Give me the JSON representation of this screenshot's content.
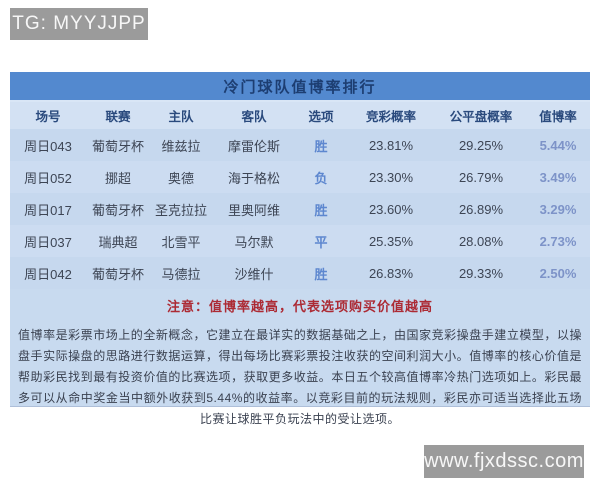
{
  "badges": {
    "top_left": "TG: MYYJJPP",
    "bottom_right": "www.fjxdssc.com"
  },
  "table": {
    "title": "冷门球队值博率排行",
    "headers": [
      "场号",
      "联赛",
      "主队",
      "客队",
      "选项",
      "竞彩概率",
      "公平盘概率",
      "值博率"
    ],
    "rows": [
      {
        "match": "周日043",
        "league": "葡萄牙杯",
        "home": "维兹拉",
        "away": "摩雷伦斯",
        "pick": "胜",
        "lottery_prob": "23.81%",
        "fair_prob": "29.25%",
        "value_rate": "5.44%"
      },
      {
        "match": "周日052",
        "league": "挪超",
        "home": "奥德",
        "away": "海于格松",
        "pick": "负",
        "lottery_prob": "23.30%",
        "fair_prob": "26.79%",
        "value_rate": "3.49%"
      },
      {
        "match": "周日017",
        "league": "葡萄牙杯",
        "home": "圣克拉拉",
        "away": "里奥阿维",
        "pick": "胜",
        "lottery_prob": "23.60%",
        "fair_prob": "26.89%",
        "value_rate": "3.29%"
      },
      {
        "match": "周日037",
        "league": "瑞典超",
        "home": "北雪平",
        "away": "马尔默",
        "pick": "平",
        "lottery_prob": "25.35%",
        "fair_prob": "28.08%",
        "value_rate": "2.73%"
      },
      {
        "match": "周日042",
        "league": "葡萄牙杯",
        "home": "马德拉",
        "away": "沙维什",
        "pick": "胜",
        "lottery_prob": "26.83%",
        "fair_prob": "29.33%",
        "value_rate": "2.50%"
      }
    ],
    "note": "注意：值博率越高，代表选项购买价值越高"
  },
  "description": "值博率是彩票市场上的全新概念，它建立在最详实的数据基础之上，由国家竞彩操盘手建立模型，以操盘手实际操盘的思路进行数据运算，得出每场比赛彩票投注收获的空间利润大小。值博率的核心价值是帮助彩民找到最有投资价值的比赛选项，获取更多收益。本日五个较高值博率冷热门选项如上。彩民最多可以从命中奖金当中额外收获到5.44%的收益率。以竞彩目前的玩法规则，彩民亦可适当选择此五场比赛让球胜平负玩法中的受让选项。",
  "colors": {
    "title_bar_bg": "#5389cf",
    "panel_bg": "#c8daef",
    "header_row_bg": "#d3e1f3",
    "title_text": "#1d3e72",
    "header_text": "#2a4a7d",
    "body_text": "#3d4554",
    "pick_text": "#5d87cf",
    "value_rate_text": "#7d93c8",
    "note_text": "#ac2a34",
    "badge_bg": "#9b9b9b"
  }
}
